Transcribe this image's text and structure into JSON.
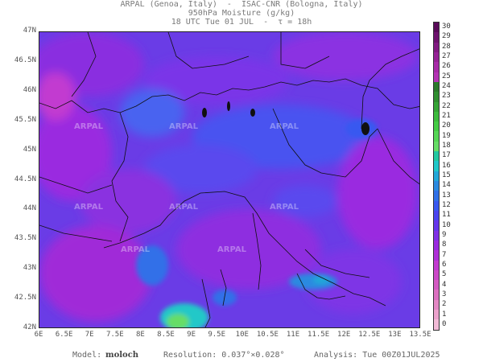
{
  "header": {
    "line1": "ARPAL (Genoa, Italy)  -  ISAC-CNR (Bologna, Italy)",
    "line2": "950hPa Moisture (g/kg)",
    "line3": "18 UTC Tue 01 JUL  -  τ = 18h"
  },
  "lat_labels": [
    "47N",
    "46.5N",
    "46N",
    "45.5N",
    "45N",
    "44.5N",
    "44N",
    "43.5N",
    "43N",
    "42.5N",
    "42N"
  ],
  "lon_labels": [
    "6E",
    "6.5E",
    "7E",
    "7.5E",
    "8E",
    "8.5E",
    "9E",
    "9.5E",
    "10E",
    "10.5E",
    "11E",
    "11.5E",
    "12E",
    "12.5E",
    "13E",
    "13.5E"
  ],
  "colorbar": {
    "labels": [
      "30",
      "29",
      "28",
      "27",
      "26",
      "25",
      "24",
      "23",
      "22",
      "21",
      "20",
      "19",
      "18",
      "17",
      "16",
      "15",
      "14",
      "13",
      "12",
      "11",
      "10",
      "9",
      "8",
      "7",
      "6",
      "5",
      "4",
      "3",
      "2",
      "1",
      "0"
    ],
    "colors": [
      "#5a0a5a",
      "#6e126e",
      "#821a82",
      "#962296",
      "#a82aa8",
      "#b433b4",
      "#2a7a2a",
      "#2f8f2f",
      "#35a535",
      "#3cbb3c",
      "#44cc44",
      "#55d655",
      "#66dd66",
      "#22c9a0",
      "#20c8c8",
      "#22a8d8",
      "#2a8ae0",
      "#3070e8",
      "#3858f0",
      "#4a44f0",
      "#6636ec",
      "#8030e6",
      "#9a2ae0",
      "#b030d8",
      "#c23ad0",
      "#cc48c8",
      "#d45ac2",
      "#dc70c0",
      "#e488c4",
      "#eca2cc",
      "#f2bad6"
    ]
  },
  "watermark": "ARPAL",
  "footer": {
    "model_label": "Model:",
    "model_name": "moloch",
    "resolution": "Resolution: 0.037°×0.028°",
    "analysis": "Analysis: Tue 00Z01JUL2025"
  }
}
